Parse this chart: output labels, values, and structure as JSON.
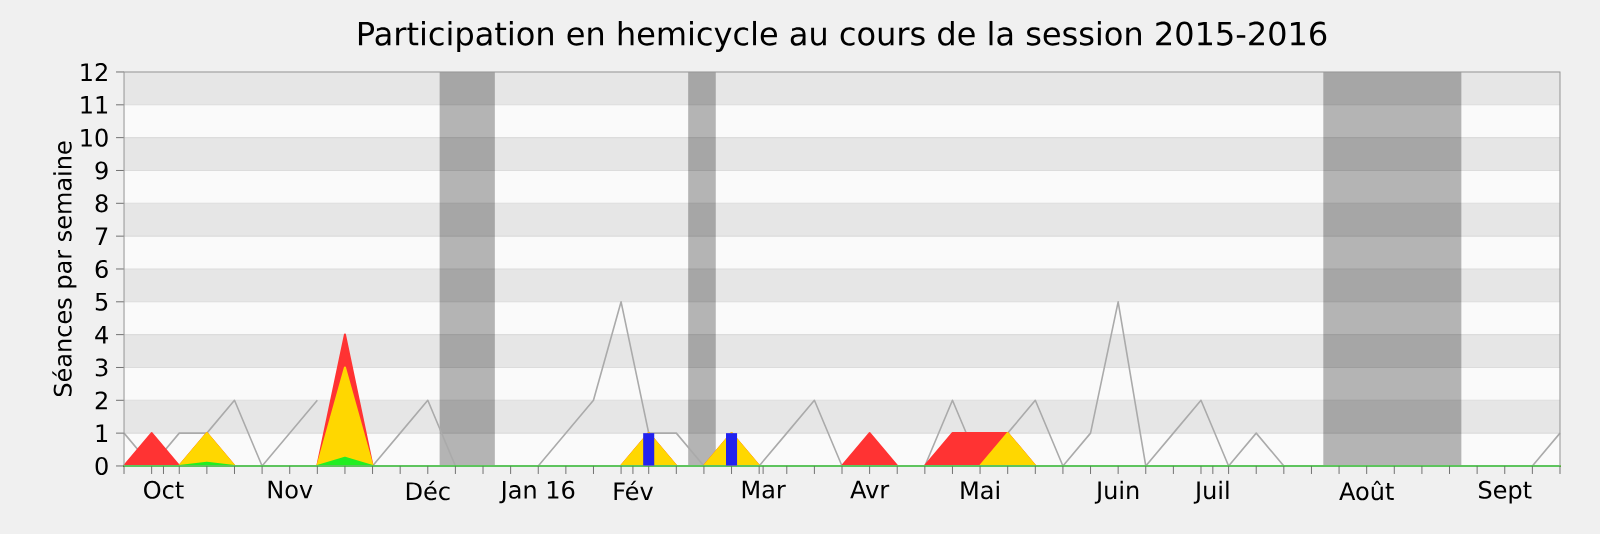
{
  "chart_data": {
    "type": "area",
    "title": "Participation en hemicycle au cours de la session 2015-2016",
    "ylabel": "Séances par semaine",
    "x": [
      "2015-09-21",
      "2015-09-28",
      "2015-10-05",
      "2015-10-12",
      "2015-10-19",
      "2015-10-26",
      "2015-11-02",
      "2015-11-09",
      "2015-11-16",
      "2015-11-23",
      "2015-11-30",
      "2015-12-07",
      "2015-12-14",
      "2015-12-21",
      "2015-12-28",
      "2016-01-04",
      "2016-01-11",
      "2016-01-18",
      "2016-01-25",
      "2016-02-01",
      "2016-02-08",
      "2016-02-15",
      "2016-02-22",
      "2016-02-29",
      "2016-03-07",
      "2016-03-14",
      "2016-03-21",
      "2016-03-28",
      "2016-04-04",
      "2016-04-11",
      "2016-04-18",
      "2016-04-25",
      "2016-05-02",
      "2016-05-09",
      "2016-05-16",
      "2016-05-23",
      "2016-05-30",
      "2016-06-06",
      "2016-06-13",
      "2016-06-20",
      "2016-06-27",
      "2016-07-04",
      "2016-07-11",
      "2016-07-18",
      "2016-07-25",
      "2016-08-01",
      "2016-08-08",
      "2016-08-15",
      "2016-08-22",
      "2016-08-29",
      "2016-09-05",
      "2016-09-12",
      "2016-09-19"
    ],
    "xlim": [
      "2015-09-21",
      "2016-09-19"
    ],
    "ylim": [
      0,
      12
    ],
    "yticks": [
      0,
      1,
      2,
      3,
      4,
      5,
      6,
      7,
      8,
      9,
      10,
      11,
      12
    ],
    "xticks": [
      {
        "value": "2015-09-21",
        "label": null
      },
      {
        "value": "2015-09-28",
        "label": null
      },
      {
        "value": "2015-10-01",
        "label": "Oct"
      },
      {
        "value": "2015-10-05",
        "label": null
      },
      {
        "value": "2015-10-12",
        "label": null
      },
      {
        "value": "2015-10-19",
        "label": null
      },
      {
        "value": "2015-10-26",
        "label": null
      },
      {
        "value": "2015-11-02",
        "label": "Nov"
      },
      {
        "value": "2015-11-09",
        "label": null
      },
      {
        "value": "2015-11-16",
        "label": null
      },
      {
        "value": "2015-11-23",
        "label": null
      },
      {
        "value": "2015-11-30",
        "label": null
      },
      {
        "value": "2015-12-07",
        "label": "Déc"
      },
      {
        "value": "2015-12-14",
        "label": null
      },
      {
        "value": "2015-12-21",
        "label": null
      },
      {
        "value": "2015-12-28",
        "label": null
      },
      {
        "value": "2016-01-04",
        "label": "Jan 16"
      },
      {
        "value": "2016-01-11",
        "label": null
      },
      {
        "value": "2016-01-18",
        "label": null
      },
      {
        "value": "2016-01-25",
        "label": null
      },
      {
        "value": "2016-01-28",
        "label": "Fév"
      },
      {
        "value": "2016-02-01",
        "label": null
      },
      {
        "value": "2016-02-08",
        "label": null
      },
      {
        "value": "2016-02-15",
        "label": null
      },
      {
        "value": "2016-02-22",
        "label": null
      },
      {
        "value": "2016-02-29",
        "label": null
      },
      {
        "value": "2016-03-01",
        "label": "Mar"
      },
      {
        "value": "2016-03-07",
        "label": null
      },
      {
        "value": "2016-03-14",
        "label": null
      },
      {
        "value": "2016-03-21",
        "label": null
      },
      {
        "value": "2016-03-28",
        "label": "Avr"
      },
      {
        "value": "2016-04-04",
        "label": null
      },
      {
        "value": "2016-04-11",
        "label": null
      },
      {
        "value": "2016-04-18",
        "label": null
      },
      {
        "value": "2016-04-25",
        "label": "Mai"
      },
      {
        "value": "2016-05-02",
        "label": null
      },
      {
        "value": "2016-05-09",
        "label": null
      },
      {
        "value": "2016-05-16",
        "label": null
      },
      {
        "value": "2016-05-23",
        "label": null
      },
      {
        "value": "2016-05-30",
        "label": "Juin"
      },
      {
        "value": "2016-06-06",
        "label": null
      },
      {
        "value": "2016-06-13",
        "label": null
      },
      {
        "value": "2016-06-20",
        "label": null
      },
      {
        "value": "2016-06-23",
        "label": "Juil"
      },
      {
        "value": "2016-06-27",
        "label": null
      },
      {
        "value": "2016-07-04",
        "label": null
      },
      {
        "value": "2016-07-11",
        "label": null
      },
      {
        "value": "2016-07-18",
        "label": null
      },
      {
        "value": "2016-07-25",
        "label": null
      },
      {
        "value": "2016-08-01",
        "label": "Août"
      },
      {
        "value": "2016-08-08",
        "label": null
      },
      {
        "value": "2016-08-15",
        "label": null
      },
      {
        "value": "2016-08-22",
        "label": null
      },
      {
        "value": "2016-08-29",
        "label": null
      },
      {
        "value": "2016-09-05",
        "label": "Sept"
      },
      {
        "value": "2016-09-12",
        "label": null
      },
      {
        "value": "2016-09-19",
        "label": null
      }
    ],
    "grid": "y",
    "bands": [
      {
        "axis": "x",
        "from": "2015-12-10",
        "to": "2015-12-24"
      },
      {
        "axis": "x",
        "from": "2016-02-11",
        "to": "2016-02-18"
      },
      {
        "axis": "x",
        "from": "2016-07-21",
        "to": "2016-08-25"
      }
    ],
    "series": [
      {
        "type": "line",
        "color": "#aaaaaa",
        "values": [
          1,
          0,
          1,
          1,
          2,
          0,
          1,
          2,
          null,
          0,
          1,
          2,
          0,
          0,
          0,
          0,
          1,
          2,
          5,
          1,
          1,
          0,
          0,
          0,
          1,
          2,
          0,
          0,
          0,
          0,
          2,
          0,
          1,
          2,
          0,
          1,
          5,
          0,
          1,
          2,
          0,
          1,
          0,
          0,
          0,
          0,
          0,
          0,
          0,
          0,
          0,
          0,
          1
        ]
      },
      {
        "color": "#ff3333",
        "values": [
          0,
          1,
          0,
          1,
          0,
          0,
          0,
          0,
          4,
          0,
          0,
          0,
          0,
          0,
          0,
          0,
          0,
          0,
          0,
          1,
          0,
          0,
          1,
          0,
          0,
          0,
          0,
          1,
          0,
          0,
          1,
          1,
          1,
          0,
          0,
          0,
          0,
          0,
          0,
          0,
          0,
          0,
          0,
          0,
          0,
          0,
          0,
          0,
          0,
          0,
          0,
          0,
          0
        ]
      },
      {
        "color": "#ffd700",
        "values": [
          0,
          0,
          0,
          1,
          0,
          0,
          0,
          0,
          3,
          0,
          0,
          0,
          0,
          0,
          0,
          0,
          0,
          0,
          0,
          1,
          0,
          0,
          1,
          0,
          0,
          0,
          0,
          0,
          0,
          0,
          0,
          0,
          1,
          0,
          0,
          0,
          0,
          0,
          0,
          0,
          0,
          0,
          0,
          0,
          0,
          0,
          0,
          0,
          0,
          0,
          0,
          0,
          0
        ]
      },
      {
        "color": "#22ee22",
        "values": [
          0,
          0,
          0,
          0.1,
          0,
          0,
          0,
          0,
          0.25,
          0,
          0,
          0,
          0,
          0,
          0,
          0,
          0,
          0,
          0,
          0,
          0,
          0,
          0,
          0,
          0,
          0,
          0,
          0,
          0,
          0,
          0,
          0,
          0,
          0,
          0,
          0,
          0,
          0,
          0,
          0,
          0,
          0,
          0,
          0,
          0,
          0,
          0,
          0,
          0,
          0,
          0,
          0,
          0
        ]
      },
      {
        "type": "bar",
        "color": "#2222ee",
        "values": [
          null,
          null,
          null,
          null,
          null,
          null,
          null,
          null,
          null,
          null,
          null,
          null,
          null,
          null,
          null,
          null,
          null,
          null,
          null,
          1,
          null,
          null,
          1,
          null,
          null,
          null,
          null,
          null,
          null,
          null,
          null,
          null,
          null,
          null,
          null,
          null,
          null,
          null,
          null,
          null,
          null,
          null,
          null,
          null,
          null,
          null,
          null,
          null,
          null,
          null,
          null,
          null,
          null
        ]
      }
    ]
  }
}
